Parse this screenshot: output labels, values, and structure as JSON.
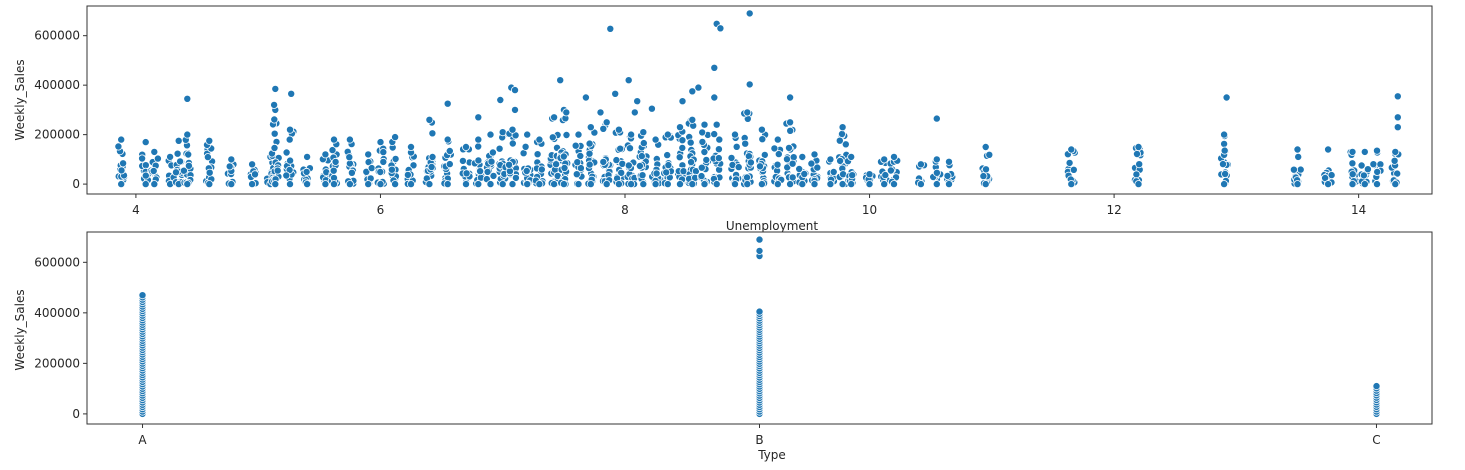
{
  "chart_data": [
    {
      "type": "scatter",
      "xlabel": "Unemployment",
      "ylabel": "Weekly_Sales",
      "xlim": [
        3.6,
        14.6
      ],
      "ylim": [
        -40000,
        720000
      ],
      "x_ticks": [
        4,
        6,
        8,
        10,
        12,
        14
      ],
      "x_tick_labels": [
        "4",
        "6",
        "8",
        "10",
        "12",
        "14"
      ],
      "y_ticks": [
        0,
        200000,
        400000,
        600000
      ],
      "y_tick_labels": [
        "0",
        "200000",
        "400000",
        "600000"
      ],
      "marker_color": "#1f77b4",
      "marker_edge": "#ffffff",
      "columns": [
        {
          "x": 3.88,
          "max": 180000
        },
        {
          "x": 4.08,
          "max": 170000
        },
        {
          "x": 4.15,
          "max": 130000
        },
        {
          "x": 4.28,
          "max": 110000
        },
        {
          "x": 4.35,
          "max": 175000
        },
        {
          "x": 4.42,
          "max": 200000
        },
        {
          "x": 4.6,
          "max": 175000
        },
        {
          "x": 4.78,
          "max": 100000
        },
        {
          "x": 4.95,
          "max": 80000
        },
        {
          "x": 5.1,
          "max": 110000
        },
        {
          "x": 5.14,
          "max": 300000
        },
        {
          "x": 5.26,
          "max": 220000
        },
        {
          "x": 5.4,
          "max": 110000
        },
        {
          "x": 5.55,
          "max": 120000
        },
        {
          "x": 5.62,
          "max": 180000
        },
        {
          "x": 5.75,
          "max": 180000
        },
        {
          "x": 5.9,
          "max": 120000
        },
        {
          "x": 6.0,
          "max": 170000
        },
        {
          "x": 6.12,
          "max": 190000
        },
        {
          "x": 6.25,
          "max": 150000
        },
        {
          "x": 6.4,
          "max": 260000
        },
        {
          "x": 6.55,
          "max": 180000
        },
        {
          "x": 6.7,
          "max": 150000
        },
        {
          "x": 6.8,
          "max": 180000
        },
        {
          "x": 6.9,
          "max": 200000
        },
        {
          "x": 7.0,
          "max": 210000
        },
        {
          "x": 7.08,
          "max": 220000
        },
        {
          "x": 7.2,
          "max": 200000
        },
        {
          "x": 7.3,
          "max": 180000
        },
        {
          "x": 7.42,
          "max": 270000
        },
        {
          "x": 7.5,
          "max": 300000
        },
        {
          "x": 7.62,
          "max": 200000
        },
        {
          "x": 7.72,
          "max": 230000
        },
        {
          "x": 7.85,
          "max": 250000
        },
        {
          "x": 7.95,
          "max": 220000
        },
        {
          "x": 8.05,
          "max": 200000
        },
        {
          "x": 8.15,
          "max": 210000
        },
        {
          "x": 8.25,
          "max": 180000
        },
        {
          "x": 8.35,
          "max": 200000
        },
        {
          "x": 8.45,
          "max": 230000
        },
        {
          "x": 8.55,
          "max": 260000
        },
        {
          "x": 8.65,
          "max": 240000
        },
        {
          "x": 8.75,
          "max": 240000
        },
        {
          "x": 8.9,
          "max": 200000
        },
        {
          "x": 9.0,
          "max": 290000
        },
        {
          "x": 9.12,
          "max": 220000
        },
        {
          "x": 9.25,
          "max": 180000
        },
        {
          "x": 9.35,
          "max": 250000
        },
        {
          "x": 9.45,
          "max": 110000
        },
        {
          "x": 9.55,
          "max": 120000
        },
        {
          "x": 9.68,
          "max": 100000
        },
        {
          "x": 9.78,
          "max": 230000
        },
        {
          "x": 9.85,
          "max": 110000
        },
        {
          "x": 10.0,
          "max": 40000
        },
        {
          "x": 10.12,
          "max": 100000
        },
        {
          "x": 10.2,
          "max": 110000
        },
        {
          "x": 10.42,
          "max": 80000
        },
        {
          "x": 10.55,
          "max": 100000
        },
        {
          "x": 10.65,
          "max": 90000
        },
        {
          "x": 10.95,
          "max": 150000
        },
        {
          "x": 11.65,
          "max": 140000
        },
        {
          "x": 12.2,
          "max": 150000
        },
        {
          "x": 12.9,
          "max": 200000
        },
        {
          "x": 13.5,
          "max": 140000
        },
        {
          "x": 13.75,
          "max": 140000
        },
        {
          "x": 13.95,
          "max": 130000
        },
        {
          "x": 14.05,
          "max": 130000
        },
        {
          "x": 14.15,
          "max": 135000
        },
        {
          "x": 14.3,
          "max": 130000
        }
      ],
      "outliers": [
        {
          "x": 7.88,
          "y": 628000
        },
        {
          "x": 8.75,
          "y": 648000
        },
        {
          "x": 8.78,
          "y": 630000
        },
        {
          "x": 9.02,
          "y": 690000
        },
        {
          "x": 8.73,
          "y": 470000
        },
        {
          "x": 9.02,
          "y": 403000
        },
        {
          "x": 8.03,
          "y": 420000
        },
        {
          "x": 7.47,
          "y": 420000
        },
        {
          "x": 7.07,
          "y": 390000
        },
        {
          "x": 7.1,
          "y": 380000
        },
        {
          "x": 5.14,
          "y": 385000
        },
        {
          "x": 5.27,
          "y": 365000
        },
        {
          "x": 4.42,
          "y": 345000
        },
        {
          "x": 6.55,
          "y": 325000
        },
        {
          "x": 6.98,
          "y": 340000
        },
        {
          "x": 7.68,
          "y": 350000
        },
        {
          "x": 7.92,
          "y": 365000
        },
        {
          "x": 8.1,
          "y": 335000
        },
        {
          "x": 8.22,
          "y": 305000
        },
        {
          "x": 8.55,
          "y": 375000
        },
        {
          "x": 8.6,
          "y": 390000
        },
        {
          "x": 8.47,
          "y": 335000
        },
        {
          "x": 8.73,
          "y": 350000
        },
        {
          "x": 9.35,
          "y": 350000
        },
        {
          "x": 12.92,
          "y": 350000
        },
        {
          "x": 14.32,
          "y": 355000
        },
        {
          "x": 14.32,
          "y": 270000
        },
        {
          "x": 14.32,
          "y": 230000
        },
        {
          "x": 10.55,
          "y": 265000
        },
        {
          "x": 6.8,
          "y": 270000
        },
        {
          "x": 7.1,
          "y": 300000
        },
        {
          "x": 7.52,
          "y": 290000
        },
        {
          "x": 5.13,
          "y": 320000
        },
        {
          "x": 7.8,
          "y": 290000
        },
        {
          "x": 8.08,
          "y": 290000
        }
      ]
    },
    {
      "type": "scatter",
      "xlabel": "Type",
      "ylabel": "Weekly_Sales",
      "categories": [
        "A",
        "B",
        "C"
      ],
      "ylim": [
        -40000,
        720000
      ],
      "y_ticks": [
        0,
        200000,
        400000,
        600000
      ],
      "y_tick_labels": [
        "0",
        "200000",
        "400000",
        "600000"
      ],
      "marker_color": "#1f77b4",
      "marker_edge": "#ffffff",
      "columns": [
        {
          "category": "A",
          "max": 470000
        },
        {
          "category": "B",
          "max": 405000,
          "outliers": [
            625000,
            645000,
            690000
          ]
        },
        {
          "category": "C",
          "max": 110000
        }
      ]
    }
  ]
}
